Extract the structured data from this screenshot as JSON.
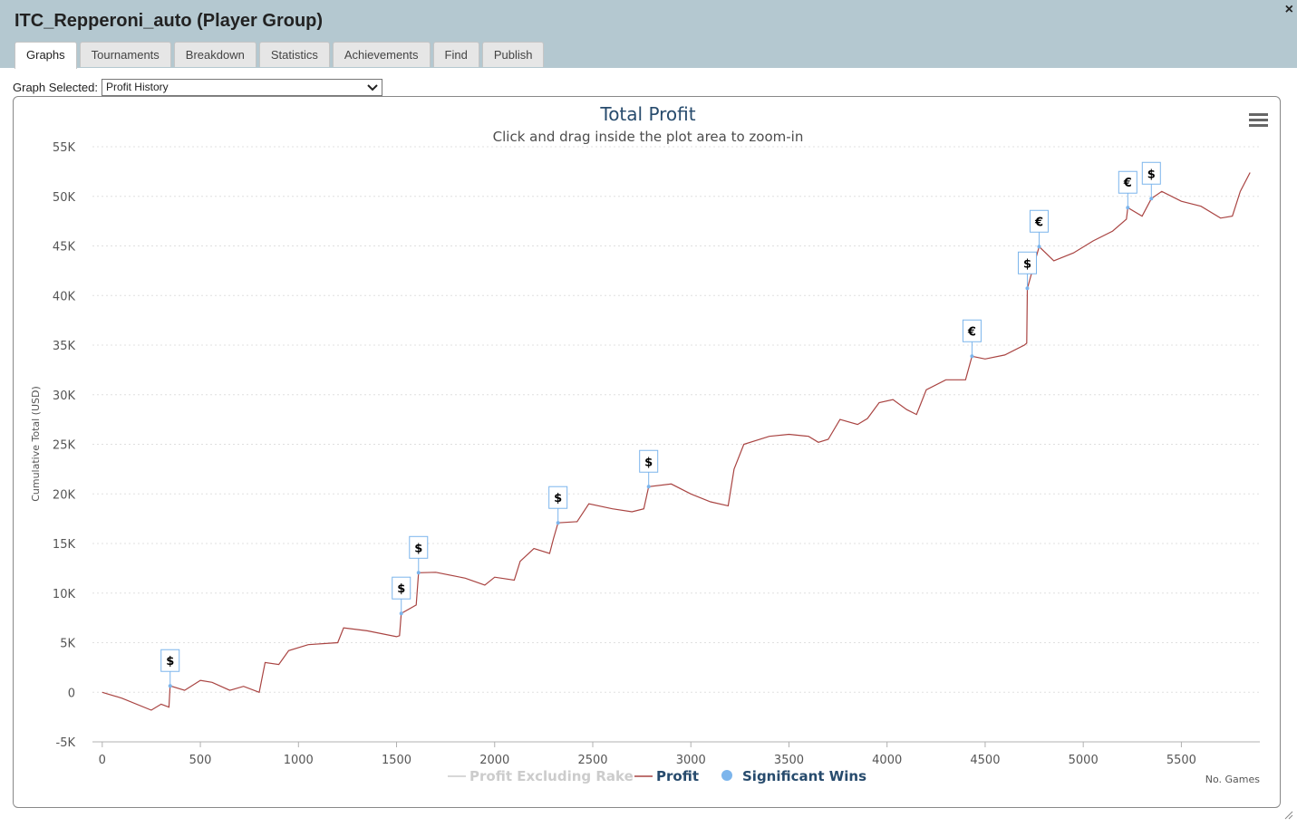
{
  "window": {
    "title": "ITC_Repperoni_auto (Player Group)",
    "close": "×"
  },
  "tabs": [
    "Graphs",
    "Tournaments",
    "Breakdown",
    "Statistics",
    "Achievements",
    "Find",
    "Publish"
  ],
  "active_tab": 0,
  "graph_select": {
    "label": "Graph Selected:",
    "value": "Profit History"
  },
  "chart_data": {
    "type": "line",
    "title": "Total Profit",
    "subtitle": "Click and drag inside the plot area to zoom-in",
    "y_label": "Cumulative Total (USD)",
    "x_label": "No. Games",
    "xlim": [
      -50,
      5900
    ],
    "ylim": [
      -5000,
      55000
    ],
    "xticks": [
      0,
      500,
      1000,
      1500,
      2000,
      2500,
      3000,
      3500,
      4000,
      4500,
      5000,
      5500
    ],
    "yticks": [
      {
        "value": -5000,
        "label": "-5K"
      },
      {
        "value": 0,
        "label": "0"
      },
      {
        "value": 5000,
        "label": "5K"
      },
      {
        "value": 10000,
        "label": "10K"
      },
      {
        "value": 15000,
        "label": "15K"
      },
      {
        "value": 20000,
        "label": "20K"
      },
      {
        "value": 25000,
        "label": "25K"
      },
      {
        "value": 30000,
        "label": "30K"
      },
      {
        "value": 35000,
        "label": "35K"
      },
      {
        "value": 40000,
        "label": "40K"
      },
      {
        "value": 45000,
        "label": "45K"
      },
      {
        "value": 50000,
        "label": "50K"
      },
      {
        "value": 55000,
        "label": "55K"
      }
    ],
    "grid": true,
    "series": [
      {
        "name": "Profit Excluding Rake",
        "color": "#cccccc",
        "visible": false
      },
      {
        "name": "Profit",
        "color": "#a94442",
        "x": [
          0,
          100,
          250,
          300,
          340,
          346,
          420,
          500,
          560,
          650,
          720,
          800,
          830,
          900,
          950,
          1050,
          1200,
          1230,
          1350,
          1500,
          1515,
          1524,
          1600,
          1612,
          1700,
          1850,
          1950,
          2000,
          2100,
          2130,
          2200,
          2280,
          2300,
          2323,
          2420,
          2480,
          2600,
          2700,
          2760,
          2785,
          2900,
          3000,
          3100,
          3190,
          3220,
          3270,
          3400,
          3500,
          3600,
          3650,
          3700,
          3760,
          3850,
          3900,
          3960,
          4030,
          4100,
          4150,
          4200,
          4300,
          4400,
          4433,
          4500,
          4600,
          4700,
          4712,
          4715,
          4775,
          4850,
          4950,
          5050,
          5150,
          5220,
          5227,
          5300,
          5347,
          5400,
          5500,
          5600,
          5700,
          5760,
          5800,
          5850
        ],
        "values": [
          0,
          -600,
          -1800,
          -1200,
          -1500,
          640,
          200,
          1200,
          1000,
          200,
          600,
          0,
          3000,
          2800,
          4200,
          4800,
          5000,
          6500,
          6200,
          5600,
          5700,
          7950,
          8800,
          12050,
          12100,
          11500,
          10800,
          11600,
          11300,
          13200,
          14500,
          14000,
          15500,
          17080,
          17200,
          19000,
          18500,
          18200,
          18500,
          20730,
          21000,
          20000,
          19200,
          18800,
          22500,
          25000,
          25800,
          26000,
          25800,
          25200,
          25500,
          27500,
          27000,
          27600,
          29200,
          29500,
          28500,
          28000,
          30500,
          31500,
          31500,
          33880,
          33600,
          34000,
          35000,
          35200,
          40730,
          44930,
          43500,
          44300,
          45500,
          46500,
          47700,
          48860,
          48000,
          49770,
          50500,
          49500,
          49000,
          47800,
          48000,
          50500,
          52400
        ]
      },
      {
        "name": "Significant Wins",
        "color": "#7cb5ec",
        "x": [
          346,
          1524,
          1612,
          2323,
          2785,
          4433,
          4715,
          4775,
          5227,
          5347
        ],
        "values": [
          640,
          7950,
          12050,
          17080,
          20730,
          33880,
          40730,
          44930,
          48860,
          49770
        ],
        "labels": [
          "$",
          "$",
          "$",
          "$",
          "$",
          "€",
          "$",
          "€",
          "€",
          "$"
        ]
      }
    ]
  }
}
